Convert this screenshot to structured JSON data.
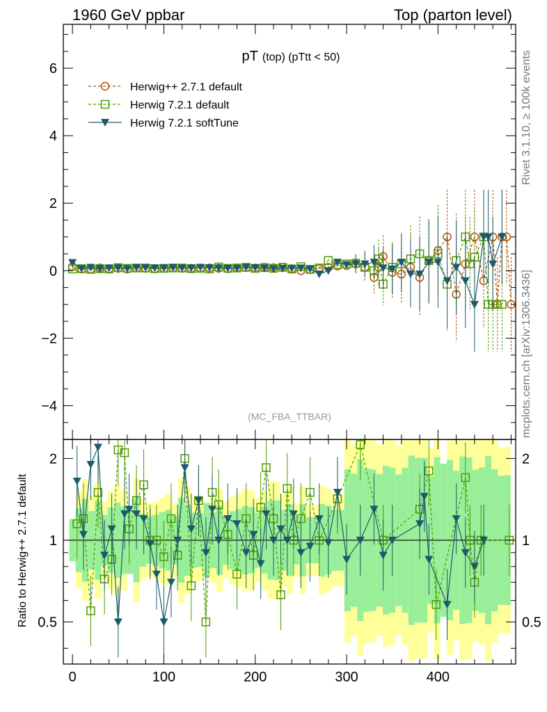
{
  "header": {
    "left": "1960 GeV ppbar",
    "right": "Top (parton level)"
  },
  "side_labels": {
    "rivet": "Rivet 3.1.10, ≥ 100k events",
    "mcplots": "mcplots.cern.ch [arXiv:1306.3436]"
  },
  "chart_data": {
    "type": "scatter",
    "title_main": "pT",
    "title_sub": "(top) (pTtt < 50)",
    "watermark": "(MC_FBA_TTBAR)",
    "xlim": [
      -10,
      485
    ],
    "ylim_main": [
      -5.0,
      7.3
    ],
    "ylim_ratio": [
      0.35,
      2.35
    ],
    "ratio_scale": "log",
    "x_ticks": [
      0,
      100,
      200,
      300,
      400
    ],
    "y_ticks_main": [
      -4,
      -2,
      0,
      2,
      4,
      6
    ],
    "y_ticks_ratio": [
      0.5,
      1,
      2
    ],
    "y_tick_labels_main": [
      "−4",
      "−2",
      "0",
      "2",
      "4",
      "6"
    ],
    "ratio_ylabel": "Ratio to Herwig++ 2.7.1 default",
    "legend_position": "top-left",
    "series": [
      {
        "name": "Herwig++ 2.7.1 default",
        "color": "#b35000",
        "marker": "circle",
        "line": "dashed",
        "points": [
          [
            0,
            0.12
          ],
          [
            10,
            0.05
          ],
          [
            20,
            0.05
          ],
          [
            30,
            0.08
          ],
          [
            40,
            0.06
          ],
          [
            50,
            0.07
          ],
          [
            60,
            0.05
          ],
          [
            70,
            0.08
          ],
          [
            80,
            0.07
          ],
          [
            90,
            0.06
          ],
          [
            100,
            0.07
          ],
          [
            110,
            0.08
          ],
          [
            120,
            0.07
          ],
          [
            130,
            0.07
          ],
          [
            140,
            0.08
          ],
          [
            150,
            0.08
          ],
          [
            160,
            0.07
          ],
          [
            170,
            0.06
          ],
          [
            180,
            0.08
          ],
          [
            190,
            0.09
          ],
          [
            200,
            0.08
          ],
          [
            210,
            0.1
          ],
          [
            220,
            0.09
          ],
          [
            230,
            0.1
          ],
          [
            240,
            0.06
          ],
          [
            250,
            0.0
          ],
          [
            260,
            0.03
          ],
          [
            270,
            0.06
          ],
          [
            280,
            0.1
          ],
          [
            290,
            0.14
          ],
          [
            300,
            0.15
          ],
          [
            310,
            0.2
          ],
          [
            320,
            0.1
          ],
          [
            330,
            -0.2
          ],
          [
            335,
            0.1
          ],
          [
            340,
            0.42
          ],
          [
            350,
            -0.05
          ],
          [
            360,
            -0.1
          ],
          [
            370,
            0.1
          ],
          [
            380,
            -0.2
          ],
          [
            390,
            0.3
          ],
          [
            400,
            0.6
          ],
          [
            410,
            1.0
          ],
          [
            420,
            -0.7
          ],
          [
            430,
            0.2
          ],
          [
            440,
            1.0
          ],
          [
            450,
            -0.3
          ],
          [
            460,
            1.0
          ],
          [
            465,
            -1.0
          ],
          [
            470,
            1.0
          ],
          [
            475,
            1.0
          ],
          [
            480,
            -1.0
          ]
        ]
      },
      {
        "name": "Herwig 7.2.1 default",
        "color": "#4d9a00",
        "marker": "square",
        "line": "dashed",
        "points": [
          [
            0,
            0.05
          ],
          [
            10,
            0.06
          ],
          [
            20,
            0.04
          ],
          [
            30,
            0.06
          ],
          [
            40,
            0.05
          ],
          [
            50,
            0.09
          ],
          [
            60,
            0.07
          ],
          [
            70,
            0.08
          ],
          [
            80,
            0.08
          ],
          [
            90,
            0.06
          ],
          [
            100,
            0.07
          ],
          [
            110,
            0.08
          ],
          [
            120,
            0.08
          ],
          [
            130,
            0.06
          ],
          [
            140,
            0.07
          ],
          [
            150,
            0.05
          ],
          [
            160,
            0.11
          ],
          [
            170,
            0.07
          ],
          [
            180,
            0.08
          ],
          [
            190,
            0.1
          ],
          [
            200,
            0.07
          ],
          [
            210,
            0.09
          ],
          [
            220,
            0.07
          ],
          [
            230,
            0.1
          ],
          [
            240,
            0.05
          ],
          [
            250,
            0.12
          ],
          [
            260,
            0.04
          ],
          [
            270,
            0.08
          ],
          [
            280,
            0.3
          ],
          [
            290,
            0.18
          ],
          [
            300,
            0.2
          ],
          [
            310,
            0.22
          ],
          [
            320,
            0.1
          ],
          [
            330,
            0.0
          ],
          [
            335,
            0.35
          ],
          [
            340,
            -0.4
          ],
          [
            350,
            0.1
          ],
          [
            360,
            0.2
          ],
          [
            370,
            0.35
          ],
          [
            380,
            0.5
          ],
          [
            390,
            0.3
          ],
          [
            400,
            0.5
          ],
          [
            410,
            -0.4
          ],
          [
            420,
            0.3
          ],
          [
            430,
            1.0
          ],
          [
            435,
            0.2
          ],
          [
            440,
            0.4
          ],
          [
            450,
            1.0
          ],
          [
            455,
            -1.0
          ],
          [
            460,
            -1.0
          ],
          [
            470,
            -1.0
          ]
        ]
      },
      {
        "name": "Herwig 7.2.1 softTune",
        "color": "#1b5a6b",
        "marker": "triangle-down",
        "line": "solid",
        "points": [
          [
            0,
            0.24
          ],
          [
            10,
            0.06
          ],
          [
            20,
            0.1
          ],
          [
            30,
            0.06
          ],
          [
            40,
            0.08
          ],
          [
            50,
            0.08
          ],
          [
            60,
            0.06
          ],
          [
            70,
            0.09
          ],
          [
            80,
            0.09
          ],
          [
            90,
            0.08
          ],
          [
            100,
            0.08
          ],
          [
            110,
            0.09
          ],
          [
            120,
            0.08
          ],
          [
            130,
            0.08
          ],
          [
            140,
            0.1
          ],
          [
            150,
            0.09
          ],
          [
            160,
            0.08
          ],
          [
            170,
            0.07
          ],
          [
            180,
            0.07
          ],
          [
            190,
            0.1
          ],
          [
            200,
            0.09
          ],
          [
            210,
            0.08
          ],
          [
            220,
            0.06
          ],
          [
            230,
            0.07
          ],
          [
            240,
            0.07
          ],
          [
            250,
            0.08
          ],
          [
            260,
            0.05
          ],
          [
            270,
            -0.1
          ],
          [
            280,
            0.0
          ],
          [
            290,
            0.25
          ],
          [
            300,
            0.18
          ],
          [
            310,
            0.2
          ],
          [
            320,
            0.2
          ],
          [
            330,
            0.25
          ],
          [
            340,
            0.08
          ],
          [
            350,
            0.05
          ],
          [
            360,
            0.25
          ],
          [
            370,
            -0.1
          ],
          [
            380,
            -0.1
          ],
          [
            390,
            0.25
          ],
          [
            400,
            0.25
          ],
          [
            410,
            -0.3
          ],
          [
            420,
            0.1
          ],
          [
            430,
            -0.3
          ],
          [
            440,
            -1.0
          ],
          [
            450,
            1.0
          ],
          [
            455,
            1.0
          ],
          [
            460,
            0.2
          ],
          [
            470,
            1.0
          ]
        ]
      }
    ],
    "ratio_band_note": "MC uncertainty bands: yellow (wide) and green (narrow) around 1",
    "ratio_series": [
      {
        "name": "Herwig 7.2.1 default",
        "points": [
          [
            5,
            1.15
          ],
          [
            12,
            1.2
          ],
          [
            20,
            0.55
          ],
          [
            28,
            1.5
          ],
          [
            35,
            0.72
          ],
          [
            43,
            0.85
          ],
          [
            50,
            2.15
          ],
          [
            57,
            2.1
          ],
          [
            62,
            1.1
          ],
          [
            70,
            1.4
          ],
          [
            78,
            1.6
          ],
          [
            85,
            1.0
          ],
          [
            92,
            1.0
          ],
          [
            100,
            0.87
          ],
          [
            108,
            1.2
          ],
          [
            115,
            0.88
          ],
          [
            123,
            2.0
          ],
          [
            130,
            0.68
          ],
          [
            138,
            1.4
          ],
          [
            146,
            0.5
          ],
          [
            153,
            1.5
          ],
          [
            160,
            1.35
          ],
          [
            170,
            1.05
          ],
          [
            180,
            0.75
          ],
          [
            190,
            1.2
          ],
          [
            198,
            0.88
          ],
          [
            206,
            1.32
          ],
          [
            212,
            1.85
          ],
          [
            220,
            1.2
          ],
          [
            228,
            0.63
          ],
          [
            235,
            1.55
          ],
          [
            242,
            1.0
          ],
          [
            250,
            1.2
          ],
          [
            260,
            1.5
          ],
          [
            270,
            1.0
          ],
          [
            290,
            1.42
          ],
          [
            315,
            2.25
          ],
          [
            340,
            1.0
          ],
          [
            380,
            1.3
          ],
          [
            390,
            1.8
          ],
          [
            398,
            0.58
          ],
          [
            430,
            1.7
          ],
          [
            435,
            1.0
          ],
          [
            440,
            0.7
          ],
          [
            447,
            1.0
          ],
          [
            478,
            1.0
          ]
        ]
      },
      {
        "name": "Herwig 7.2.1 softTune",
        "points": [
          [
            5,
            1.65
          ],
          [
            12,
            1.05
          ],
          [
            20,
            1.9
          ],
          [
            28,
            2.2
          ],
          [
            35,
            0.88
          ],
          [
            43,
            1.1
          ],
          [
            50,
            0.5
          ],
          [
            57,
            1.25
          ],
          [
            62,
            1.3
          ],
          [
            70,
            1.25
          ],
          [
            78,
            1.2
          ],
          [
            85,
            0.97
          ],
          [
            92,
            0.75
          ],
          [
            100,
            0.5
          ],
          [
            108,
            0.7
          ],
          [
            115,
            1.0
          ],
          [
            123,
            1.85
          ],
          [
            130,
            1.1
          ],
          [
            138,
            1.4
          ],
          [
            146,
            0.9
          ],
          [
            153,
            1.3
          ],
          [
            160,
            1.0
          ],
          [
            170,
            1.2
          ],
          [
            180,
            1.15
          ],
          [
            190,
            0.9
          ],
          [
            198,
            1.05
          ],
          [
            206,
            0.82
          ],
          [
            212,
            1.25
          ],
          [
            220,
            1.0
          ],
          [
            228,
            1.1
          ],
          [
            235,
            1.0
          ],
          [
            242,
            1.25
          ],
          [
            250,
            0.9
          ],
          [
            260,
            0.95
          ],
          [
            270,
            1.2
          ],
          [
            280,
            0.98
          ],
          [
            290,
            1.5
          ],
          [
            300,
            0.85
          ],
          [
            315,
            1.0
          ],
          [
            330,
            1.3
          ],
          [
            340,
            0.88
          ],
          [
            350,
            1.0
          ],
          [
            380,
            1.15
          ],
          [
            385,
            1.45
          ],
          [
            390,
            0.85
          ],
          [
            410,
            0.58
          ],
          [
            420,
            1.2
          ],
          [
            430,
            0.9
          ],
          [
            440,
            0.8
          ],
          [
            450,
            1.0
          ]
        ]
      }
    ]
  }
}
